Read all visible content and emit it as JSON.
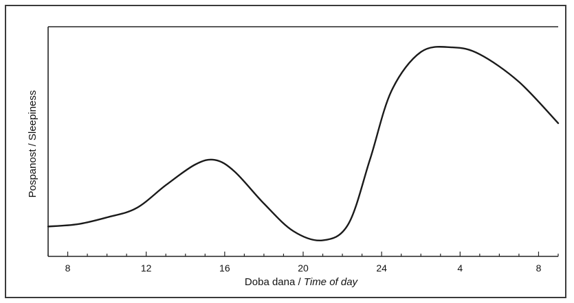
{
  "chart_data": {
    "type": "line",
    "title": "",
    "xlabel": {
      "plain": "Doba dana / ",
      "italic": "Time of day"
    },
    "ylabel": "Pospanost / Sleepiness",
    "x_range_hours": [
      7,
      33
    ],
    "x_ticks": [
      {
        "hour": 8,
        "label": "8"
      },
      {
        "hour": 12,
        "label": "12"
      },
      {
        "hour": 16,
        "label": "16"
      },
      {
        "hour": 20,
        "label": "20"
      },
      {
        "hour": 24,
        "label": "24"
      },
      {
        "hour": 28,
        "label": "4"
      },
      {
        "hour": 32,
        "label": "8"
      }
    ],
    "y_range": [
      0,
      100
    ],
    "y_ticks_labeled": false,
    "grid": false,
    "series": [
      {
        "points": [
          {
            "x": 7.0,
            "y": 13
          },
          {
            "x": 8.5,
            "y": 14
          },
          {
            "x": 10.0,
            "y": 17
          },
          {
            "x": 11.5,
            "y": 21
          },
          {
            "x": 13.0,
            "y": 31
          },
          {
            "x": 14.5,
            "y": 40
          },
          {
            "x": 15.5,
            "y": 42
          },
          {
            "x": 16.5,
            "y": 37
          },
          {
            "x": 18.0,
            "y": 23
          },
          {
            "x": 19.5,
            "y": 11
          },
          {
            "x": 21.0,
            "y": 7
          },
          {
            "x": 22.3,
            "y": 14
          },
          {
            "x": 23.4,
            "y": 42
          },
          {
            "x": 24.5,
            "y": 72
          },
          {
            "x": 26.0,
            "y": 89
          },
          {
            "x": 27.6,
            "y": 91
          },
          {
            "x": 29.0,
            "y": 88
          },
          {
            "x": 31.0,
            "y": 76
          },
          {
            "x": 33.0,
            "y": 58
          }
        ]
      }
    ]
  },
  "style": {
    "line_color": "#1a1a1a",
    "axis_color": "#222222"
  }
}
